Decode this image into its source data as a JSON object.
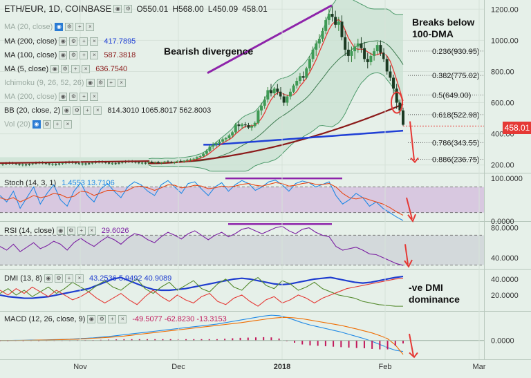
{
  "chart_data": [
    {
      "panel": "price",
      "type": "candlestick",
      "symbol": "ETH/EUR, 1D, COINBASE",
      "ohlc_label": {
        "open": "O550.01",
        "high": "H568.00",
        "low": "L450.09",
        "close": "458.01"
      },
      "last_price": "458.01",
      "ylim": [
        150,
        1250
      ],
      "y_ticks": [
        "1200.00",
        "1000.00",
        "800.00",
        "600.00",
        "400.00",
        "200.00"
      ],
      "x_ticks": [
        "Nov",
        "Dec",
        "2018",
        "Feb",
        "Mar"
      ],
      "indicators": [
        {
          "name": "MA (20, close)",
          "value": "",
          "enabled": false
        },
        {
          "name": "MA (200, close)",
          "value": "417.7895",
          "color": "#1f3fd6"
        },
        {
          "name": "MA (100, close)",
          "value": "587.3818",
          "color": "#8b1a1a"
        },
        {
          "name": "MA (5, close)",
          "value": "636.7540",
          "color": "#e53935"
        },
        {
          "name": "Ichimoku (9, 26, 52, 26)",
          "value": "",
          "enabled": false
        },
        {
          "name": "MA (200, close)",
          "value": "",
          "enabled": false
        },
        {
          "name": "BB (20, close, 2)",
          "value": "814.3010   1065.8017   562.8003"
        },
        {
          "name": "Vol (20)",
          "value": "",
          "enabled": false
        }
      ],
      "fib_levels": [
        {
          "label": "0.236(930.95)",
          "value": 930.95
        },
        {
          "label": "0.382(775.02)",
          "value": 775.02
        },
        {
          "label": "0.5(649.00)",
          "value": 649.0
        },
        {
          "label": "0.618(522.98)",
          "value": 522.98
        },
        {
          "label": "0.786(343.55)",
          "value": 343.55
        },
        {
          "label": "0.886(236.75)",
          "value": 236.75
        }
      ],
      "annotations": [
        "Bearish divergence",
        "Breaks below\n100-DMA"
      ],
      "candles": [
        [
          215,
          225,
          205,
          220
        ],
        [
          220,
          228,
          212,
          214
        ],
        [
          214,
          222,
          206,
          218
        ],
        [
          218,
          226,
          210,
          212
        ],
        [
          212,
          220,
          204,
          216
        ],
        [
          216,
          226,
          208,
          222
        ],
        [
          222,
          230,
          214,
          218
        ],
        [
          218,
          226,
          210,
          214
        ],
        [
          214,
          222,
          206,
          220
        ],
        [
          220,
          230,
          214,
          226
        ],
        [
          226,
          236,
          218,
          222
        ],
        [
          222,
          230,
          214,
          228
        ],
        [
          228,
          240,
          220,
          232
        ],
        [
          232,
          242,
          224,
          236
        ],
        [
          236,
          246,
          228,
          240
        ],
        [
          240,
          255,
          232,
          250
        ],
        [
          250,
          262,
          242,
          256
        ],
        [
          256,
          280,
          248,
          272
        ],
        [
          272,
          300,
          262,
          290
        ],
        [
          290,
          330,
          282,
          318
        ],
        [
          318,
          345,
          300,
          330
        ],
        [
          330,
          350,
          316,
          340
        ],
        [
          340,
          360,
          325,
          350
        ],
        [
          350,
          375,
          340,
          365
        ],
        [
          365,
          380,
          350,
          372
        ],
        [
          372,
          400,
          360,
          390
        ],
        [
          390,
          420,
          375,
          410
        ],
        [
          410,
          470,
          400,
          460
        ],
        [
          460,
          480,
          420,
          450
        ],
        [
          450,
          470,
          430,
          460
        ],
        [
          460,
          475,
          440,
          455
        ],
        [
          455,
          470,
          430,
          440
        ],
        [
          440,
          460,
          420,
          450
        ],
        [
          450,
          480,
          440,
          470
        ],
        [
          470,
          560,
          460,
          550
        ],
        [
          550,
          600,
          520,
          580
        ],
        [
          580,
          640,
          560,
          620
        ],
        [
          620,
          700,
          600,
          680
        ],
        [
          680,
          720,
          640,
          660
        ],
        [
          660,
          700,
          630,
          690
        ],
        [
          690,
          720,
          650,
          670
        ],
        [
          670,
          700,
          620,
          640
        ],
        [
          640,
          660,
          580,
          600
        ],
        [
          600,
          650,
          580,
          640
        ],
        [
          640,
          690,
          620,
          670
        ],
        [
          670,
          720,
          660,
          710
        ],
        [
          710,
          760,
          690,
          740
        ],
        [
          740,
          790,
          720,
          770
        ],
        [
          770,
          800,
          740,
          760
        ],
        [
          760,
          830,
          750,
          820
        ],
        [
          820,
          900,
          800,
          880
        ],
        [
          880,
          960,
          860,
          940
        ],
        [
          940,
          1000,
          900,
          980
        ],
        [
          980,
          1040,
          950,
          1010
        ],
        [
          1010,
          1080,
          990,
          1060
        ],
        [
          1060,
          1150,
          1040,
          1130
        ],
        [
          1130,
          1200,
          1100,
          1170
        ],
        [
          1170,
          1220,
          1120,
          1150
        ],
        [
          1150,
          1190,
          1080,
          1100
        ],
        [
          1100,
          1150,
          1060,
          1120
        ],
        [
          1120,
          1160,
          1000,
          1020
        ],
        [
          1020,
          1060,
          900,
          940
        ],
        [
          940,
          990,
          860,
          900
        ],
        [
          900,
          960,
          860,
          930
        ],
        [
          930,
          980,
          880,
          960
        ],
        [
          960,
          1010,
          920,
          980
        ],
        [
          980,
          1020,
          920,
          950
        ],
        [
          950,
          990,
          860,
          880
        ],
        [
          880,
          920,
          820,
          860
        ],
        [
          860,
          920,
          840,
          900
        ],
        [
          900,
          950,
          870,
          930
        ],
        [
          930,
          990,
          910,
          970
        ],
        [
          970,
          1000,
          900,
          920
        ],
        [
          920,
          950,
          860,
          880
        ],
        [
          880,
          900,
          780,
          800
        ],
        [
          800,
          840,
          740,
          760
        ],
        [
          760,
          780,
          660,
          690
        ],
        [
          690,
          720,
          560,
          600
        ],
        [
          600,
          620,
          520,
          550
        ],
        [
          550,
          568,
          450.09,
          458.01
        ]
      ]
    },
    {
      "panel": "stoch",
      "type": "line",
      "label": "Stoch (14, 3, 1)",
      "values_text": "1.4553   13.7106",
      "ylim": [
        0,
        110
      ],
      "y_ticks": [
        "100.0000",
        "0.0000"
      ],
      "series": [
        {
          "name": "%K",
          "color": "#1e88e5",
          "values": [
            60,
            45,
            70,
            30,
            55,
            80,
            40,
            65,
            85,
            50,
            35,
            70,
            90,
            60,
            45,
            75,
            88,
            70,
            55,
            80,
            92,
            85,
            70,
            60,
            85,
            95,
            80,
            65,
            88,
            92,
            75,
            60,
            80,
            90,
            70,
            85,
            95,
            88,
            72,
            80,
            92,
            96,
            85,
            70,
            88,
            94,
            90,
            80,
            86,
            92,
            60,
            40,
            50,
            65,
            55,
            35,
            45,
            30,
            20,
            10,
            1.4553
          ]
        },
        {
          "name": "%D",
          "color": "#e64a19",
          "values": [
            55,
            50,
            55,
            45,
            52,
            60,
            55,
            58,
            65,
            62,
            55,
            58,
            70,
            68,
            60,
            66,
            72,
            72,
            68,
            72,
            80,
            82,
            78,
            72,
            78,
            85,
            84,
            78,
            80,
            84,
            82,
            76,
            78,
            82,
            80,
            82,
            86,
            88,
            84,
            82,
            86,
            90,
            88,
            82,
            84,
            88,
            90,
            86,
            86,
            88,
            80,
            65,
            55,
            52,
            55,
            50,
            45,
            40,
            32,
            22,
            13.7106
          ]
        }
      ]
    },
    {
      "panel": "rsi",
      "type": "line",
      "label": "RSI (14, close)",
      "values_text": "29.6026",
      "ylim": [
        25,
        88
      ],
      "y_ticks": [
        "80.0000",
        "40.0000"
      ],
      "series": [
        {
          "name": "RSI",
          "color": "#7b1fa2",
          "values": [
            55,
            50,
            58,
            48,
            54,
            60,
            52,
            56,
            62,
            58,
            50,
            60,
            66,
            60,
            55,
            62,
            68,
            64,
            58,
            66,
            72,
            70,
            64,
            60,
            68,
            74,
            70,
            65,
            72,
            76,
            70,
            64,
            70,
            74,
            68,
            72,
            78,
            80,
            76,
            72,
            76,
            80,
            82,
            76,
            72,
            78,
            80,
            74,
            70,
            68,
            55,
            50,
            52,
            54,
            50,
            45,
            44,
            40,
            36,
            32,
            29.6026
          ]
        }
      ]
    },
    {
      "panel": "dmi",
      "type": "line",
      "label": "DMI (13, 8)",
      "values_text": "43.2536   5.9492   40.9089",
      "ylim": [
        0,
        52
      ],
      "y_ticks": [
        "40.0000",
        "20.0000"
      ],
      "series": [
        {
          "name": "ADX",
          "color": "#1e3ccf",
          "values": [
            20,
            18,
            17,
            16,
            16,
            17,
            18,
            20,
            22,
            24,
            26,
            28,
            32,
            36,
            40,
            42,
            38,
            34,
            30,
            27,
            26,
            26,
            27,
            28,
            30,
            32,
            34,
            36,
            38,
            40,
            41,
            40,
            38,
            36,
            34,
            33,
            34,
            36,
            38,
            40,
            41,
            42,
            40,
            38,
            36,
            35,
            36,
            38,
            40,
            42,
            43.2536
          ]
        },
        {
          "name": "+DI",
          "color": "#558b2f",
          "values": [
            22,
            28,
            20,
            26,
            18,
            24,
            30,
            22,
            28,
            36,
            30,
            24,
            32,
            38,
            30,
            26,
            34,
            40,
            28,
            22,
            30,
            36,
            26,
            32,
            38,
            28,
            24,
            34,
            40,
            30,
            26,
            36,
            42,
            32,
            28,
            38,
            34,
            26,
            30,
            36,
            28,
            24,
            20,
            18,
            16,
            12,
            10,
            8,
            7,
            6,
            5.9492
          ]
        },
        {
          "name": "-DI",
          "color": "#e53935",
          "values": [
            26,
            20,
            28,
            22,
            30,
            24,
            18,
            26,
            20,
            14,
            18,
            24,
            16,
            10,
            16,
            22,
            14,
            8,
            18,
            26,
            18,
            12,
            20,
            14,
            10,
            18,
            22,
            12,
            8,
            16,
            20,
            12,
            6,
            14,
            18,
            10,
            14,
            20,
            16,
            10,
            16,
            20,
            24,
            28,
            30,
            32,
            34,
            36,
            38,
            40,
            40.9089
          ]
        }
      ],
      "annotation": "-ve DMI\ndominance"
    },
    {
      "panel": "macd",
      "type": "line",
      "label": "MACD (12, 26, close, 9)",
      "values_text": "-49.5077   -62.8230   -13.3153",
      "ylim": [
        -85,
        130
      ],
      "y_ticks": [
        "0.0000"
      ],
      "series": [
        {
          "name": "MACD",
          "color": "#1e88e5",
          "values": [
            0,
            0,
            1,
            1,
            2,
            2,
            3,
            4,
            5,
            6,
            8,
            10,
            12,
            15,
            18,
            22,
            26,
            30,
            34,
            38,
            42,
            46,
            50,
            54,
            58,
            62,
            66,
            70,
            74,
            80,
            86,
            92,
            98,
            104,
            110,
            114,
            112,
            104,
            92,
            80,
            70,
            62,
            54,
            46,
            38,
            28,
            18,
            8,
            -4,
            -18,
            -32,
            -44,
            -49.5077
          ]
        },
        {
          "name": "Signal",
          "color": "#ef6c00",
          "values": [
            0,
            0,
            0,
            1,
            1,
            2,
            2,
            3,
            4,
            5,
            6,
            8,
            10,
            12,
            14,
            17,
            20,
            24,
            28,
            32,
            36,
            40,
            44,
            48,
            52,
            56,
            60,
            64,
            68,
            72,
            76,
            80,
            85,
            90,
            95,
            100,
            103,
            104,
            102,
            98,
            92,
            86,
            80,
            74,
            68,
            60,
            52,
            43,
            34,
            22,
            8,
            -20,
            -62.823
          ]
        },
        {
          "name": "Histogram",
          "color": "#c2185b",
          "values": [
            0,
            0,
            1,
            0,
            1,
            0,
            1,
            1,
            1,
            1,
            2,
            2,
            2,
            3,
            4,
            5,
            6,
            6,
            6,
            6,
            6,
            6,
            6,
            6,
            6,
            6,
            6,
            6,
            6,
            8,
            10,
            12,
            13,
            14,
            15,
            14,
            9,
            0,
            -10,
            -18,
            -22,
            -24,
            -26,
            -28,
            -30,
            -32,
            -34,
            -35,
            -38,
            -40,
            -40,
            -24,
            -13.3153
          ]
        }
      ],
      "x_ticks": [
        "Nov",
        "Dec",
        "2018",
        "Feb",
        "Mar"
      ]
    }
  ]
}
